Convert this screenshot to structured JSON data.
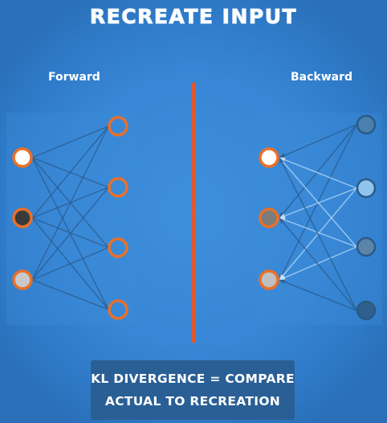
{
  "title": "RECREATE INPUT",
  "forward_label": "Forward",
  "backward_label": "Backward",
  "caption": {
    "line1": "KL DIVERGENCE = COMPARE",
    "line2": "ACTUAL TO RECREATION"
  },
  "colors": {
    "node_ring": "#e8702a",
    "divider": "#e2572e",
    "input_nodes": [
      "#ffffff",
      "#3a3a3a",
      "#c9c9c9"
    ],
    "backward_hidden_nodes": [
      "#4a7fae",
      "#8ec4ee",
      "#5b85a8",
      "#2f5f8c"
    ],
    "backward_recreated_nodes": [
      "#ffffff",
      "#7c7c7c",
      "#c0c0c0"
    ]
  }
}
